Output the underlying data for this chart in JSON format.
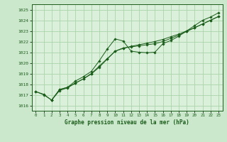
{
  "title": "Graphe pression niveau de la mer (hPa)",
  "background_color": "#cce8cc",
  "plot_bg_color": "#daf0da",
  "grid_color": "#aad4aa",
  "line_color": "#1a5c1a",
  "text_color": "#1a5c1a",
  "xlim": [
    -0.5,
    23.5
  ],
  "ylim": [
    1015.5,
    1025.5
  ],
  "yticks": [
    1016,
    1017,
    1018,
    1019,
    1020,
    1021,
    1022,
    1023,
    1024,
    1025
  ],
  "xticks": [
    0,
    1,
    2,
    3,
    4,
    5,
    6,
    7,
    8,
    9,
    10,
    11,
    12,
    13,
    14,
    15,
    16,
    17,
    18,
    19,
    20,
    21,
    22,
    23
  ],
  "series1_x": [
    0,
    1,
    2,
    3,
    4,
    5,
    6,
    7,
    8,
    9,
    10,
    11,
    12,
    13,
    14,
    15,
    16,
    17,
    18,
    19,
    20,
    21,
    22,
    23
  ],
  "series1_y": [
    1017.3,
    1017.0,
    1016.5,
    1017.5,
    1017.7,
    1018.3,
    1018.7,
    1019.2,
    1020.2,
    1021.3,
    1022.25,
    1022.05,
    1021.1,
    1021.0,
    1020.95,
    1021.0,
    1021.8,
    1022.1,
    1022.5,
    1023.0,
    1023.5,
    1024.0,
    1024.3,
    1024.7
  ],
  "series2_x": [
    2,
    3,
    4,
    5,
    6,
    7,
    8,
    9,
    10,
    11,
    12,
    13,
    14,
    15,
    16,
    17,
    18,
    19,
    20,
    21,
    22,
    23
  ],
  "series2_y": [
    1016.5,
    1017.5,
    1017.7,
    1018.1,
    1018.5,
    1019.0,
    1019.7,
    1020.4,
    1021.1,
    1021.4,
    1021.5,
    1021.6,
    1021.7,
    1021.8,
    1022.0,
    1022.3,
    1022.6,
    1022.95,
    1023.3,
    1023.65,
    1024.0,
    1024.35
  ],
  "series3_x": [
    0,
    1,
    2,
    3,
    4,
    5,
    6,
    7,
    8,
    9,
    10,
    11,
    12,
    13,
    14,
    15,
    16,
    17,
    18,
    19,
    20,
    21,
    22,
    23
  ],
  "series3_y": [
    1017.3,
    1017.05,
    1016.5,
    1017.4,
    1017.65,
    1018.1,
    1018.5,
    1018.95,
    1019.6,
    1020.35,
    1021.1,
    1021.35,
    1021.55,
    1021.7,
    1021.85,
    1022.0,
    1022.2,
    1022.45,
    1022.7,
    1023.0,
    1023.3,
    1023.65,
    1024.0,
    1024.35
  ]
}
